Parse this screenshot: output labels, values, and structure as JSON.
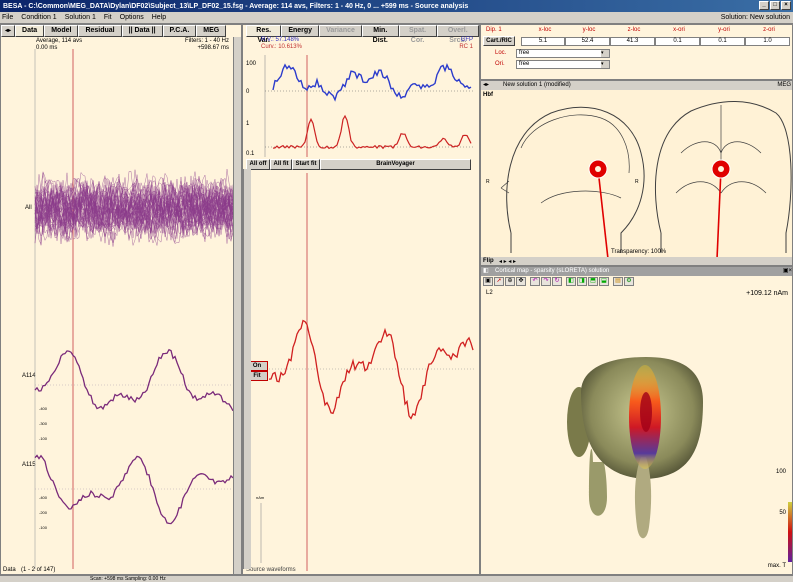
{
  "window": {
    "title": "BESA - C:\\Common\\MEG_DATA\\Dylan\\DF02\\Subject_13\\LP_DF02_15.fsg - Average: 114 avs, Filters: 1 - 40 Hz, 0 ... +599 ms - Source analysis",
    "controls": [
      "_",
      "□",
      "×"
    ]
  },
  "menu": {
    "items": [
      "File",
      "Condition 1",
      "Solution 1",
      "Fit",
      "Options",
      "Help"
    ],
    "right_text": "Solution: New solution"
  },
  "left_panel": {
    "tabs": [
      "Data",
      "Model",
      "Residual",
      "|| Data ||",
      "P.C.A.",
      "MEG"
    ],
    "info_left_1": "Average, 114 avs",
    "info_left_2": "0.00 ms",
    "info_right_1": "Filters: 1 - 40 Hz",
    "info_right_2": "+598.67 ms",
    "channel_all": "All",
    "channel_a114": "A114",
    "channel_a115": "A115",
    "ticks_a114": [
      "-400",
      "-300",
      "-100"
    ],
    "ticks_a115": [
      "-400",
      "-200",
      "-100"
    ],
    "status": "Data",
    "status_range": "(1 - 2 of 147)"
  },
  "middle_panel": {
    "tabs": [
      "Res. Var.",
      "Energy",
      "Variance",
      "Min. Dist.",
      "Spat. Cor.",
      "Overl. Srcs."
    ],
    "rv_label": "R.V.: 57.148%",
    "curv_label": "Curv.: 10.613%",
    "gfp_label": "GFP",
    "rc_label": "RC 1",
    "axis_labels": [
      "100",
      "0",
      "1",
      "0.1"
    ],
    "buttons": [
      "All off",
      "All fit",
      "Start fit",
      "BrainVoyager"
    ],
    "on_label": "On",
    "fit_label": "Fit",
    "source_waveforms": "Source waveforms",
    "scale_label": "nAm"
  },
  "dipole_table": {
    "headers": [
      "x-loc",
      "y-loc",
      "z-loc",
      "x-ori",
      "y-ori",
      "z-ori"
    ],
    "row_label": "Dip. 1",
    "button": "Cart./RIC",
    "values": [
      "5.1",
      "52.4",
      "41.3",
      "0.1",
      "0.1",
      "1.0"
    ],
    "loc_label": "Loc.",
    "ori_label": "Ori.",
    "loc_value": "free",
    "ori_value": "free"
  },
  "head_view": {
    "title": "New solution 1 (modified)",
    "label_meg": "MEG",
    "label_hbf": "Hbf",
    "flip_label": "Flip",
    "transparency": "Transparency: 100%",
    "marker_color": "#e00000"
  },
  "cortical_map": {
    "title": "Cortical map - sparsity (sLORETA) solution",
    "l2": "L2",
    "value": "+109.12 nAm",
    "scale_100": "100",
    "scale_50": "50",
    "scale_max": "max. T"
  },
  "status": {
    "text": "Scan: +598 ms  Sampling: 0.00 Hz"
  }
}
